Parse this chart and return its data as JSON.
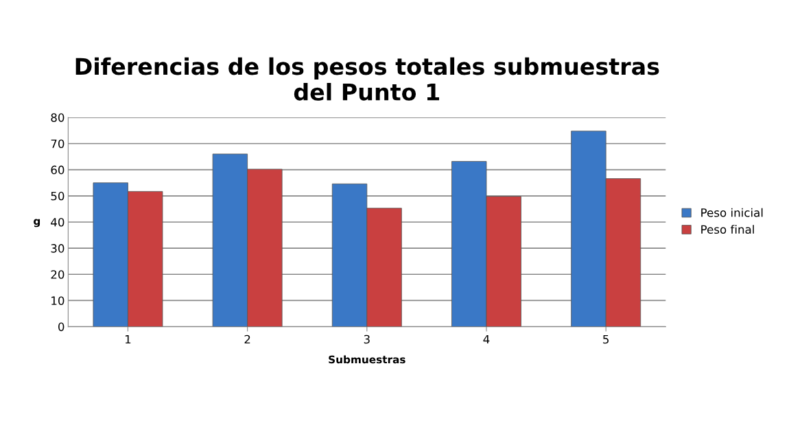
{
  "chart_data": {
    "type": "bar",
    "title": "Diferencias de los pesos totales submuestras\ndel Punto 1",
    "xlabel": "Submuestras",
    "ylabel": "g",
    "categories": [
      "1",
      "2",
      "3",
      "4",
      "5"
    ],
    "series": [
      {
        "name": "Peso inicial",
        "color": "#3a78c6",
        "values": [
          55.0,
          66.0,
          54.6,
          63.2,
          74.8
        ]
      },
      {
        "name": "Peso final",
        "color": "#c94040",
        "values": [
          51.7,
          60.2,
          45.3,
          49.8,
          56.6
        ]
      }
    ],
    "ylim": [
      0,
      80
    ],
    "yticks": [
      0,
      10,
      20,
      30,
      40,
      50,
      60,
      70,
      80
    ],
    "grid": "y",
    "legend": "right"
  }
}
